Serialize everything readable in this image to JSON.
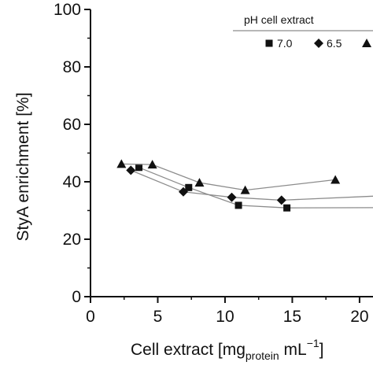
{
  "chart_data": {
    "type": "line",
    "xlabel": {
      "main": "Cell extract  [mg",
      "sub": "protein",
      "unit": " mL",
      "sup": "−1",
      "close": "]"
    },
    "ylabel": "StyA enrichment [%]",
    "xlim": [
      0,
      21
    ],
    "ylim": [
      0,
      100
    ],
    "x_ticks": [
      0,
      5,
      10,
      15,
      20
    ],
    "x_tick_labels": [
      "0",
      "5",
      "10",
      "15",
      "20"
    ],
    "y_ticks": [
      0,
      20,
      40,
      60,
      80,
      100
    ],
    "y_tick_labels": [
      "0",
      "20",
      "40",
      "60",
      "80",
      "100"
    ],
    "grid": false,
    "legend": {
      "title": "pH cell extract",
      "placement": "top-right"
    },
    "series": [
      {
        "name": "7.0",
        "marker": "square",
        "x": [
          3.6,
          7.3,
          11.0,
          14.6,
          21.0
        ],
        "y": [
          45.0,
          38.0,
          31.8,
          30.9,
          31.0
        ]
      },
      {
        "name": "6.5",
        "marker": "diamond",
        "x": [
          3.0,
          6.9,
          10.5,
          14.2,
          21.0
        ],
        "y": [
          44.0,
          36.5,
          34.6,
          33.6,
          35.0
        ]
      },
      {
        "name": "",
        "marker": "triangle",
        "x": [
          2.3,
          4.6,
          8.1,
          11.5,
          18.2
        ],
        "y": [
          46.2,
          46.0,
          39.7,
          37.1,
          40.7
        ]
      }
    ],
    "colors": {
      "line": "#8c8c8c",
      "marker": "#111111",
      "axis": "#111111"
    }
  }
}
